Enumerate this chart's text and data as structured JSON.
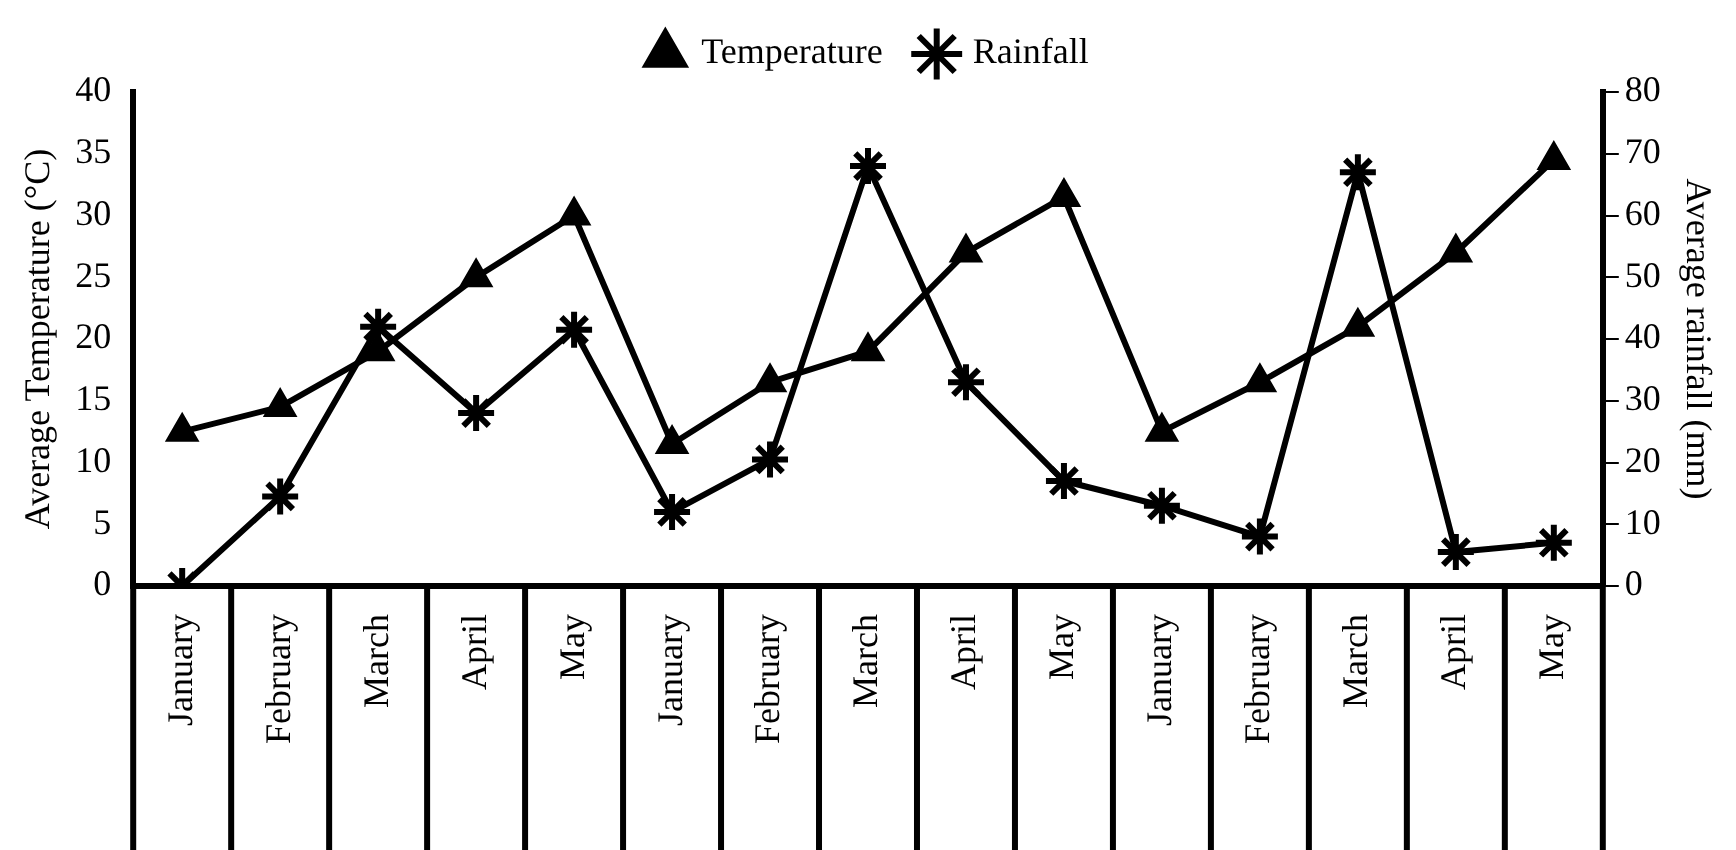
{
  "chart_data": {
    "type": "line",
    "ylabel": "Average Temperature (°C)",
    "y2label": "Average rainfall (mm)",
    "categories": [
      "January",
      "February",
      "March",
      "April",
      "May",
      "January",
      "February",
      "March",
      "April",
      "May",
      "January",
      "February",
      "March",
      "April",
      "May"
    ],
    "ylim": [
      0,
      40
    ],
    "yticks": [
      0,
      5,
      10,
      15,
      20,
      25,
      30,
      35,
      40
    ],
    "y2lim": [
      0,
      80
    ],
    "y2ticks": [
      0,
      10,
      20,
      30,
      40,
      50,
      60,
      70,
      80
    ],
    "legend": "top",
    "line_style": "solid",
    "series": [
      {
        "name": "Temperature",
        "color": "#000000",
        "marker": "triangle",
        "values": [
          12.5,
          14.5,
          19,
          25,
          30,
          11.5,
          16.5,
          19,
          27,
          31.5,
          12.5,
          16.5,
          21,
          27,
          34.5
        ]
      },
      {
        "name": "Rainfall",
        "color": "#000000",
        "marker": "cross",
        "axis": "y2",
        "values": [
          0,
          14.5,
          42,
          28,
          41.5,
          12,
          20.5,
          68,
          33,
          17,
          13,
          8,
          67,
          5.5,
          7
        ]
      }
    ]
  }
}
